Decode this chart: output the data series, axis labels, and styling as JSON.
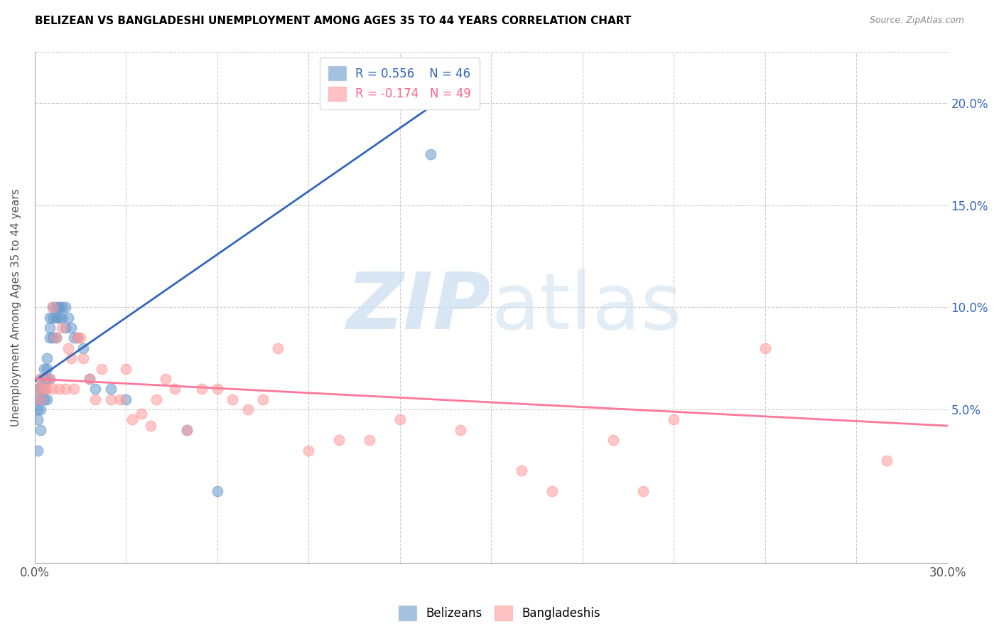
{
  "title": "BELIZEAN VS BANGLADESHI UNEMPLOYMENT AMONG AGES 35 TO 44 YEARS CORRELATION CHART",
  "source": "Source: ZipAtlas.com",
  "ylabel": "Unemployment Among Ages 35 to 44 years",
  "right_yticks": [
    "20.0%",
    "15.0%",
    "10.0%",
    "5.0%"
  ],
  "right_ytick_vals": [
    0.2,
    0.15,
    0.1,
    0.05
  ],
  "xlim": [
    0.0,
    0.3
  ],
  "ylim": [
    -0.025,
    0.225
  ],
  "legend_r_belize": "R = 0.556",
  "legend_n_belize": "N = 46",
  "legend_r_bangla": "R = -0.174",
  "legend_n_bangla": "N = 49",
  "belize_color": "#6699CC",
  "bangla_color": "#FF9999",
  "belize_line_color": "#3366BB",
  "bangla_line_color": "#FF7799",
  "belize_line": [
    0.0,
    0.064,
    0.13,
    0.198
  ],
  "bangla_line": [
    0.0,
    0.065,
    0.3,
    0.042
  ],
  "belize_x": [
    0.001,
    0.001,
    0.001,
    0.001,
    0.001,
    0.002,
    0.002,
    0.002,
    0.002,
    0.002,
    0.003,
    0.003,
    0.003,
    0.003,
    0.004,
    0.004,
    0.004,
    0.004,
    0.005,
    0.005,
    0.005,
    0.005,
    0.006,
    0.006,
    0.006,
    0.007,
    0.007,
    0.007,
    0.008,
    0.008,
    0.009,
    0.009,
    0.01,
    0.01,
    0.011,
    0.012,
    0.013,
    0.014,
    0.016,
    0.018,
    0.02,
    0.025,
    0.03,
    0.05,
    0.06,
    0.13
  ],
  "belize_y": [
    0.06,
    0.055,
    0.05,
    0.045,
    0.03,
    0.065,
    0.06,
    0.055,
    0.05,
    0.04,
    0.07,
    0.065,
    0.06,
    0.055,
    0.075,
    0.07,
    0.065,
    0.055,
    0.095,
    0.09,
    0.085,
    0.065,
    0.1,
    0.095,
    0.085,
    0.1,
    0.095,
    0.085,
    0.1,
    0.095,
    0.1,
    0.095,
    0.1,
    0.09,
    0.095,
    0.09,
    0.085,
    0.085,
    0.08,
    0.065,
    0.06,
    0.06,
    0.055,
    0.04,
    0.01,
    0.175
  ],
  "bangla_x": [
    0.001,
    0.002,
    0.002,
    0.003,
    0.004,
    0.005,
    0.006,
    0.006,
    0.007,
    0.008,
    0.009,
    0.01,
    0.011,
    0.012,
    0.013,
    0.014,
    0.015,
    0.016,
    0.018,
    0.02,
    0.022,
    0.025,
    0.028,
    0.03,
    0.032,
    0.035,
    0.038,
    0.04,
    0.043,
    0.046,
    0.05,
    0.055,
    0.06,
    0.065,
    0.07,
    0.075,
    0.08,
    0.09,
    0.1,
    0.11,
    0.12,
    0.14,
    0.16,
    0.17,
    0.19,
    0.2,
    0.21,
    0.24,
    0.28
  ],
  "bangla_y": [
    0.06,
    0.065,
    0.055,
    0.06,
    0.06,
    0.065,
    0.1,
    0.06,
    0.085,
    0.06,
    0.09,
    0.06,
    0.08,
    0.075,
    0.06,
    0.085,
    0.085,
    0.075,
    0.065,
    0.055,
    0.07,
    0.055,
    0.055,
    0.07,
    0.045,
    0.048,
    0.042,
    0.055,
    0.065,
    0.06,
    0.04,
    0.06,
    0.06,
    0.055,
    0.05,
    0.055,
    0.08,
    0.03,
    0.035,
    0.035,
    0.045,
    0.04,
    0.02,
    0.01,
    0.035,
    0.01,
    0.045,
    0.08,
    0.025
  ]
}
